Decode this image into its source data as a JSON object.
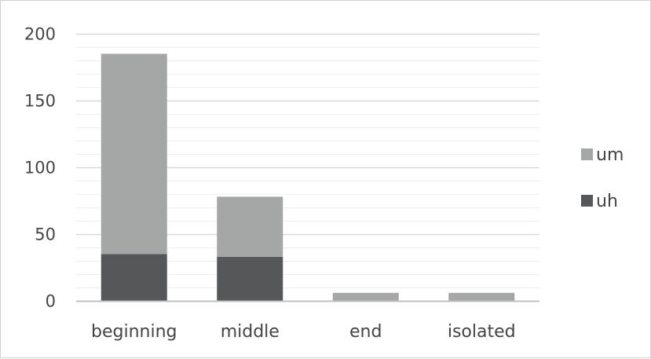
{
  "chart_data": {
    "type": "bar",
    "stacked": true,
    "title": "",
    "xlabel": "",
    "ylabel": "",
    "categories": [
      "beginning",
      "middle",
      "end",
      "isolated"
    ],
    "series": [
      {
        "name": "uh",
        "values": [
          35,
          33,
          0,
          0
        ],
        "color": "#555758"
      },
      {
        "name": "um",
        "values": [
          150,
          45,
          6,
          6
        ],
        "color": "#a5a6a6"
      }
    ],
    "ylim": [
      0,
      200
    ],
    "yticks": [
      0,
      50,
      100,
      150,
      200
    ],
    "minor_gridlines_step": 10,
    "grid": true,
    "legend": {
      "placement": "right",
      "order": [
        "um",
        "uh"
      ]
    },
    "colors": {
      "major_grid": "#d9d9d9",
      "minor_grid": "#efefef",
      "axis": "#bfbfbf",
      "text": "#444444"
    }
  }
}
